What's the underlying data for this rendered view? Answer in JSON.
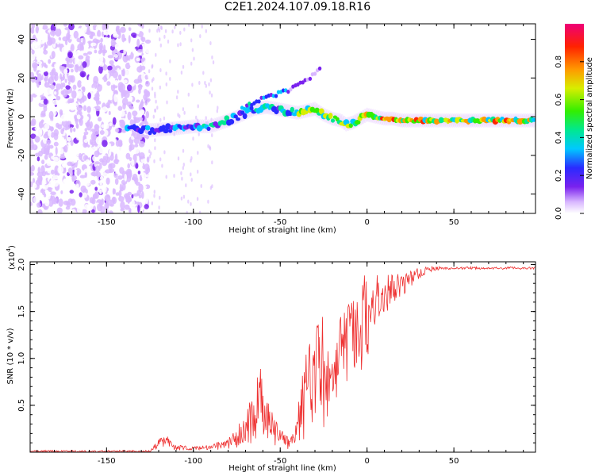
{
  "title": "C2E1.2024.107.09.18.R16",
  "colors": {
    "snr_line": "#ee3030",
    "axis": "#000000",
    "scatter": "#7a22ee"
  },
  "chart_data": [
    {
      "id": "spectrogram",
      "type": "heatmap",
      "title": "C2E1.2024.107.09.18.R16",
      "xlabel": "Height of straight line (km)",
      "ylabel": "Frequency (Hz)",
      "xlim": [
        -194,
        97
      ],
      "ylim": [
        -50,
        48
      ],
      "xticks": [
        -150,
        -100,
        -50,
        0,
        50
      ],
      "xtick_labels": [
        "-150",
        "-100",
        "-50",
        "0",
        "50"
      ],
      "yticks": [
        -40,
        -20,
        0,
        20,
        40
      ],
      "ytick_labels": [
        "-40",
        "-20",
        "0",
        "20",
        "40"
      ],
      "ridge": {
        "note": "main signal trace, normalized amplitude ~0.2-1.0",
        "x": [
          -138,
          -125,
          -110,
          -100,
          -90,
          -80,
          -72,
          -65,
          -58,
          -52,
          -46,
          -40,
          -35,
          -30,
          -25,
          -20,
          -15,
          -12,
          -8,
          -4,
          0,
          5,
          10,
          15,
          20,
          30,
          40,
          50,
          60,
          70,
          80,
          90,
          97
        ],
        "y": [
          -6,
          -7,
          -6,
          -5,
          -5,
          -2,
          1,
          4,
          5,
          4,
          3,
          2,
          3,
          4,
          1,
          -1,
          -2,
          -4,
          -3,
          -1,
          1,
          0,
          -1,
          -1,
          -2,
          -2,
          -2,
          -2,
          -2,
          -2,
          -2,
          -2,
          -2
        ]
      },
      "branch": {
        "note": "secondary rising echo",
        "x": [
          -72,
          -65,
          -58,
          -50,
          -42,
          -36,
          -30,
          -26
        ],
        "y": [
          4,
          7,
          10,
          12,
          15,
          18,
          22,
          26
        ]
      },
      "colorbar": {
        "label": "Normalized spectral amplitude",
        "ticks": [
          0.0,
          0.2,
          0.4,
          0.6,
          0.8
        ],
        "tick_labels": [
          "0.0",
          "0.2",
          "0.4",
          "0.6",
          "0.8"
        ],
        "range": [
          0,
          1
        ]
      }
    },
    {
      "id": "snr",
      "type": "line",
      "xlabel": "Height of straight line (km)",
      "ylabel": "SNR (10 * v/v)",
      "scale_label": "(x10",
      "scale_exp": "4",
      "scale_close": ")",
      "xlim": [
        -194,
        97
      ],
      "ylim": [
        0,
        2.03
      ],
      "xticks": [
        -150,
        -100,
        -50,
        0,
        50
      ],
      "xtick_labels": [
        "-150",
        "-100",
        "-50",
        "0",
        "50"
      ],
      "yticks": [
        0.5,
        1.0,
        1.5,
        2.0
      ],
      "ytick_labels": [
        "0.5",
        "1.0",
        "1.5",
        "2.0"
      ],
      "envelope": {
        "note": "upper/lower bound of noisy SNR trace, units x10^4",
        "x": [
          -194,
          -125,
          -118,
          -115,
          -110,
          -100,
          -90,
          -80,
          -72,
          -66,
          -62,
          -58,
          -54,
          -48,
          -42,
          -38,
          -34,
          -30,
          -26,
          -22,
          -18,
          -14,
          -10,
          -6,
          -2,
          2,
          6,
          10,
          14,
          20,
          26,
          32,
          36,
          40,
          50,
          60,
          70,
          80,
          90,
          97
        ],
        "upper": [
          0.02,
          0.02,
          0.18,
          0.18,
          0.08,
          0.06,
          0.08,
          0.15,
          0.35,
          0.65,
          0.98,
          0.6,
          0.4,
          0.22,
          0.2,
          0.75,
          1.3,
          1.4,
          1.5,
          1.05,
          1.25,
          1.55,
          1.65,
          1.6,
          1.98,
          1.75,
          1.95,
          1.88,
          1.9,
          1.92,
          1.95,
          1.97,
          1.98,
          1.98,
          1.97,
          1.98,
          1.97,
          1.98,
          1.97,
          1.98
        ],
        "lower": [
          0.0,
          0.0,
          0.06,
          0.05,
          0.02,
          0.02,
          0.02,
          0.03,
          0.05,
          0.1,
          0.2,
          0.15,
          0.08,
          0.03,
          0.03,
          0.04,
          0.1,
          0.03,
          0.1,
          0.3,
          0.55,
          0.7,
          0.75,
          0.9,
          0.4,
          1.2,
          1.3,
          1.45,
          1.55,
          1.65,
          1.78,
          1.88,
          1.92,
          1.94,
          1.95,
          1.95,
          1.95,
          1.95,
          1.95,
          1.95
        ]
      }
    }
  ]
}
